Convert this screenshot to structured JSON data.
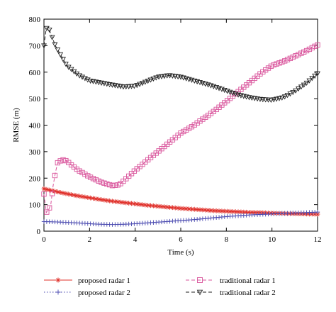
{
  "chart_data": {
    "type": "line",
    "xlabel": "Time (s)",
    "ylabel": "RMSE (m)",
    "xlim": [
      0,
      12
    ],
    "ylim": [
      0,
      800
    ],
    "xticks": [
      "0",
      "2",
      "4",
      "6",
      "8",
      "10",
      "12"
    ],
    "yticks": [
      "0",
      "100",
      "200",
      "300",
      "400",
      "500",
      "600",
      "700",
      "800"
    ],
    "grid": false,
    "legend_position": "bottom",
    "series": [
      {
        "name": "proposed radar 1",
        "color": "#e0302a",
        "marker": "asterisk",
        "dash": "solid",
        "x": [
          0,
          0.5,
          1,
          1.5,
          2,
          2.5,
          3,
          3.5,
          4,
          4.5,
          5,
          5.5,
          6,
          6.5,
          7,
          7.5,
          8,
          8.5,
          9,
          9.5,
          10,
          10.5,
          11,
          11.5,
          12
        ],
        "y": [
          160,
          150,
          141,
          133,
          126,
          119,
          113,
          108,
          103,
          98,
          94,
          90,
          86,
          83,
          80,
          77,
          75,
          73,
          71,
          70,
          68,
          67,
          66,
          65,
          64
        ]
      },
      {
        "name": "proposed radar 2",
        "color": "#4a4ab0",
        "marker": "plus",
        "dash": "dotted",
        "x": [
          0,
          0.5,
          1,
          1.5,
          2,
          2.5,
          3,
          3.5,
          4,
          4.5,
          5,
          5.5,
          6,
          6.5,
          7,
          7.5,
          8,
          8.5,
          9,
          9.5,
          10,
          10.5,
          11,
          11.5,
          12
        ],
        "y": [
          36,
          35,
          33,
          31,
          28,
          26,
          25,
          26,
          28,
          31,
          34,
          37,
          40,
          43,
          47,
          51,
          55,
          58,
          61,
          63,
          65,
          67,
          69,
          70,
          72
        ]
      },
      {
        "name": "traditional radar 1",
        "color": "#d9539b",
        "marker": "square",
        "dash": "dashed",
        "x": [
          0,
          0.1,
          0.2,
          0.3,
          0.4,
          0.5,
          0.6,
          0.8,
          1,
          1.2,
          1.5,
          2,
          2.5,
          3,
          3.3,
          3.5,
          4,
          4.5,
          5,
          5.5,
          6,
          6.5,
          7,
          7.5,
          8,
          8.5,
          9,
          9.5,
          10,
          10.5,
          11,
          11.5,
          12
        ],
        "y": [
          140,
          70,
          80,
          100,
          170,
          220,
          258,
          270,
          265,
          250,
          230,
          205,
          185,
          172,
          175,
          190,
          230,
          265,
          300,
          335,
          370,
          395,
          425,
          455,
          490,
          525,
          560,
          595,
          625,
          640,
          660,
          680,
          703
        ]
      },
      {
        "name": "traditional radar 2",
        "color": "#222222",
        "marker": "triangle-down",
        "dash": "dashed",
        "x": [
          0,
          0.1,
          0.2,
          0.3,
          0.5,
          0.8,
          1,
          1.5,
          2,
          2.5,
          3,
          3.5,
          4,
          4.5,
          5,
          5.5,
          6,
          6.5,
          7,
          7.5,
          8,
          8.5,
          9,
          9.5,
          10,
          10.5,
          11,
          11.5,
          12
        ],
        "y": [
          700,
          765,
          770,
          745,
          700,
          655,
          625,
          590,
          568,
          560,
          552,
          545,
          548,
          565,
          582,
          588,
          582,
          570,
          558,
          545,
          530,
          515,
          505,
          498,
          495,
          505,
          528,
          558,
          595
        ]
      }
    ]
  }
}
